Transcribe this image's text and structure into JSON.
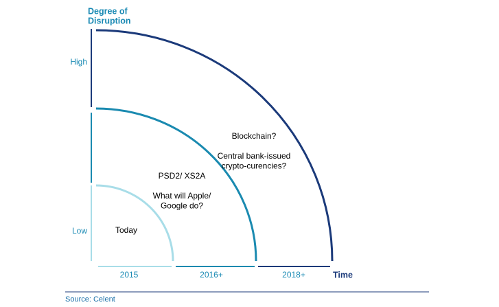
{
  "axis": {
    "y_title": [
      "Degree of",
      "Disruption"
    ],
    "y_levels": [
      "High",
      "Low"
    ],
    "x_title": "Time",
    "x_periods": [
      "2015",
      "2016+",
      "2018+"
    ]
  },
  "zones": [
    {
      "label": [
        "Today"
      ]
    },
    {
      "label": [
        "PSD2/ XS2A",
        "",
        "What will Apple/",
        "Google do?"
      ]
    },
    {
      "label": [
        "Blockchain?",
        "",
        "Central bank-issued",
        "crypto-curencies?"
      ]
    }
  ],
  "source": "Source: Celent"
}
